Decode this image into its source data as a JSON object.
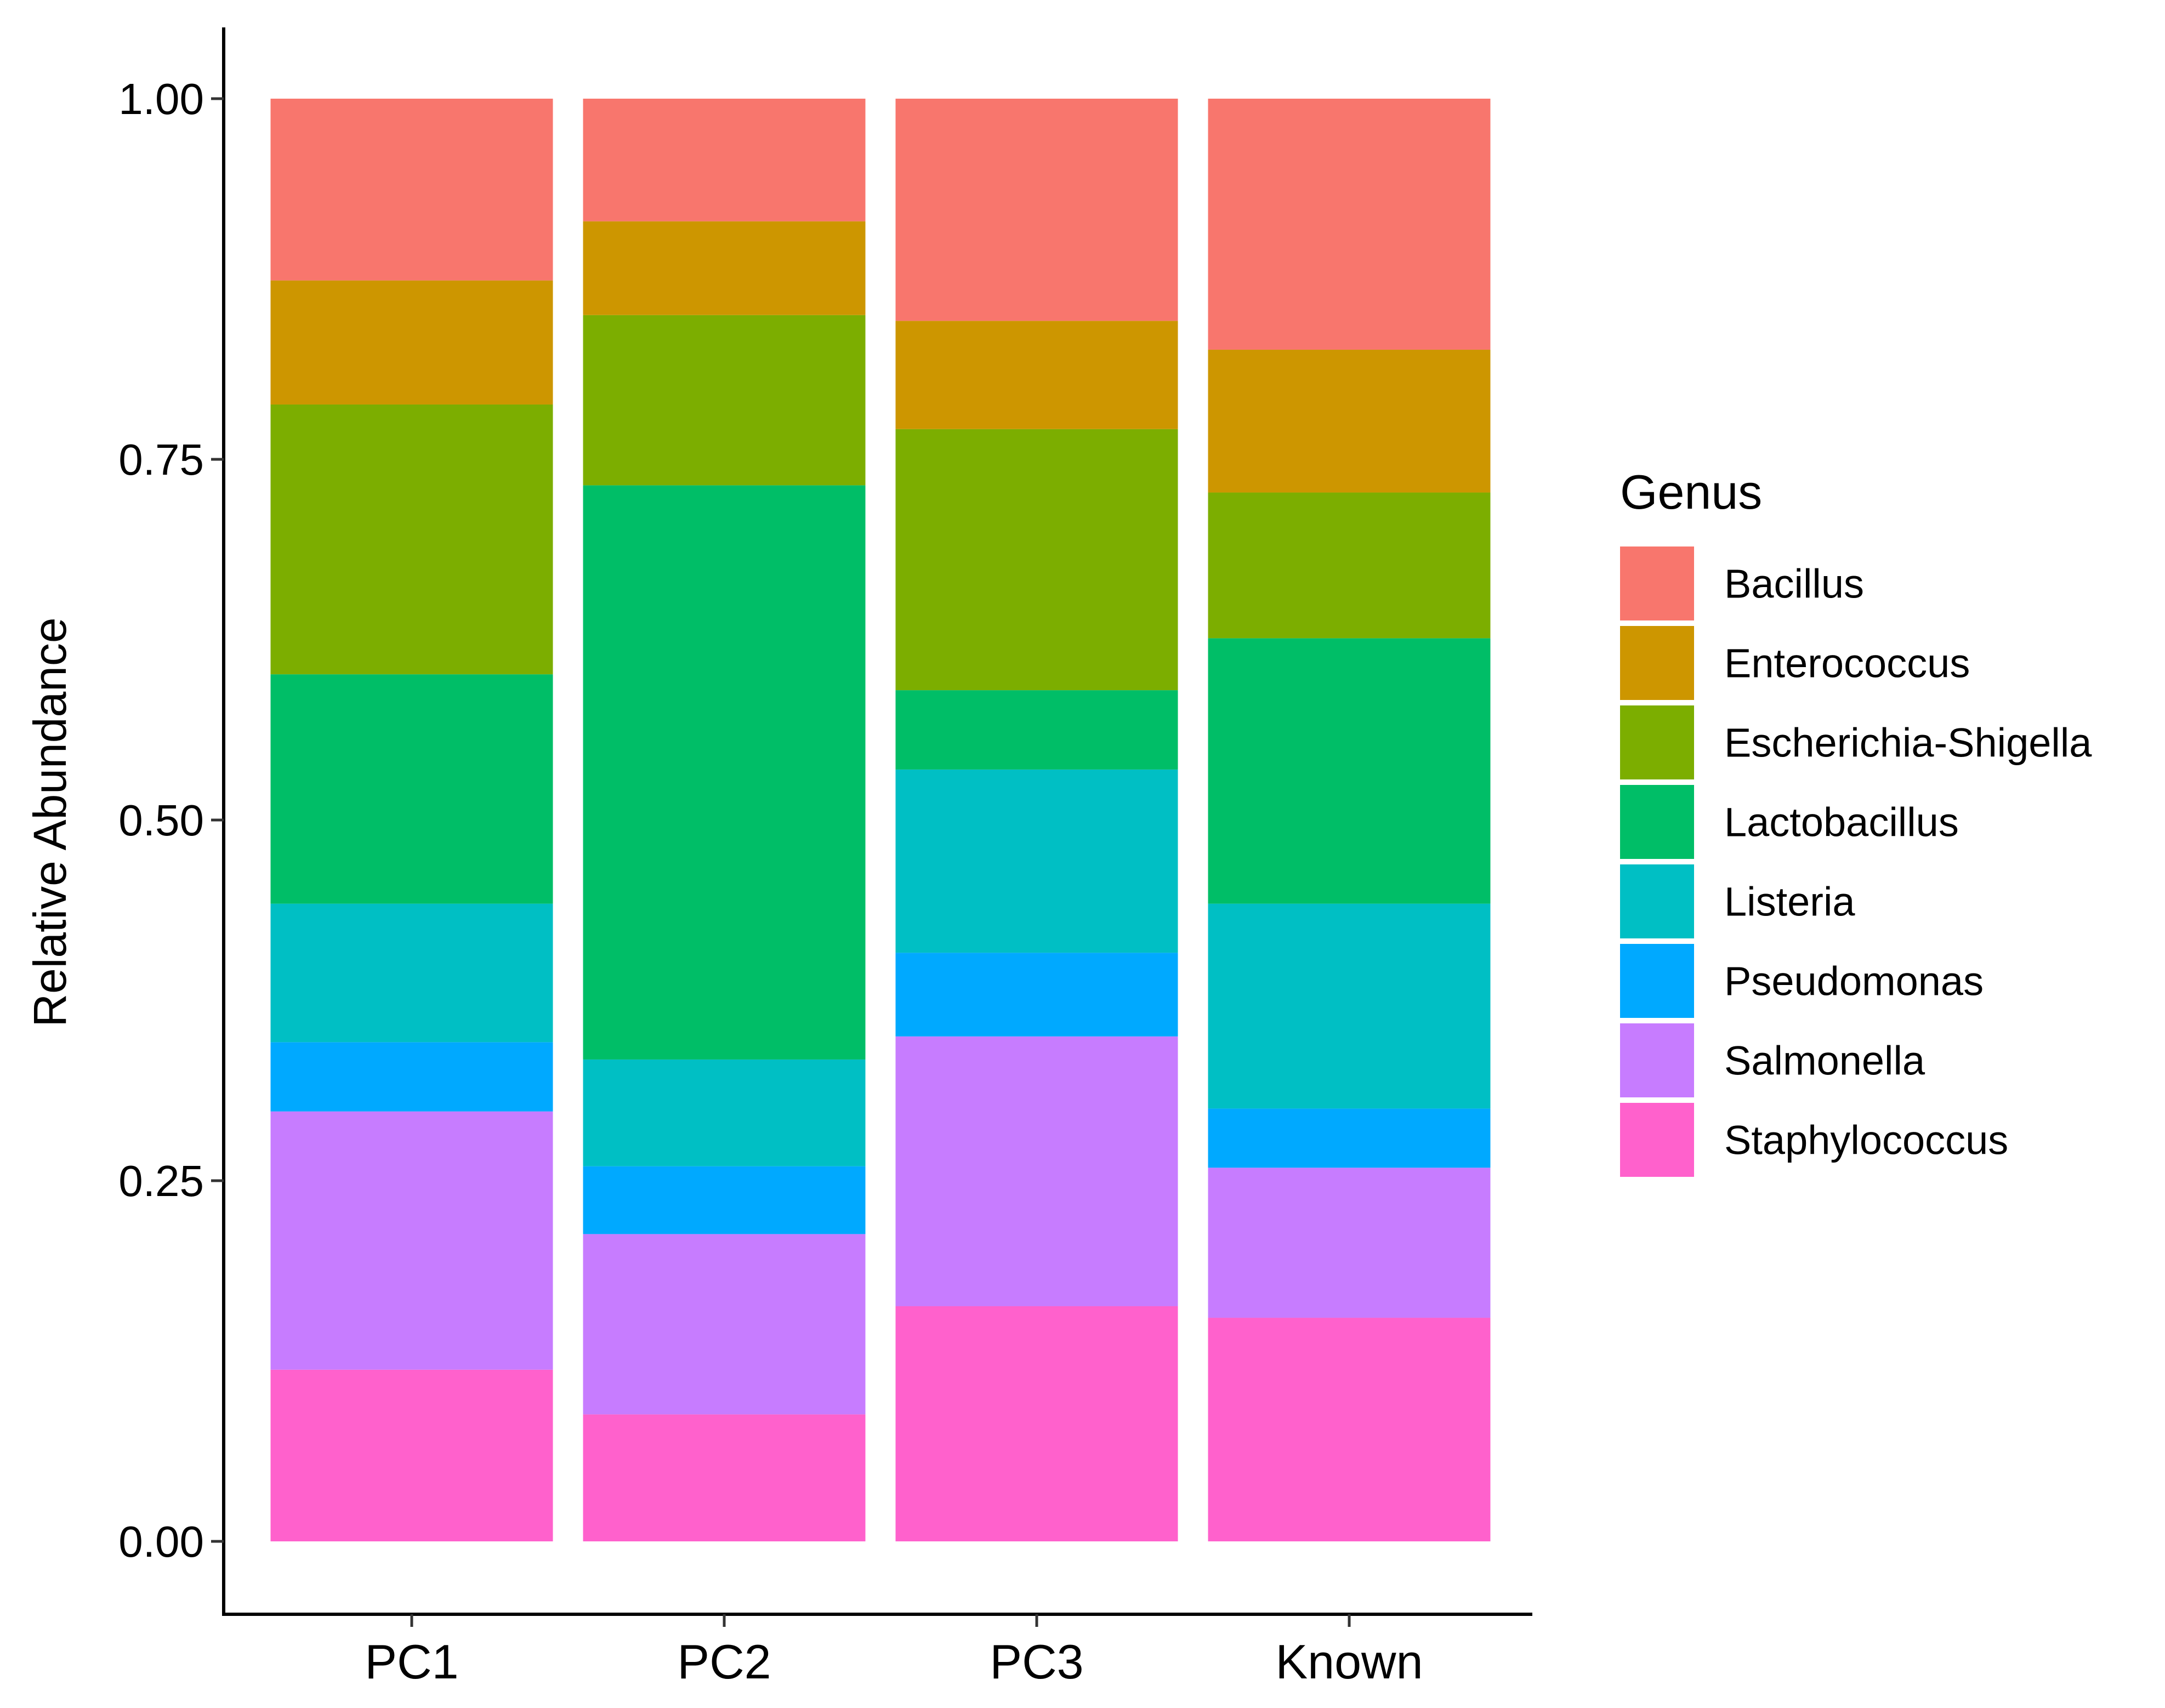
{
  "chart_data": {
    "type": "bar",
    "stacked": true,
    "title": "",
    "xlabel": "",
    "ylabel": "Relative Abundance",
    "ylim": [
      0,
      1
    ],
    "yticks": [
      "0.00",
      "0.25",
      "0.50",
      "0.75",
      "1.00"
    ],
    "ytick_values": [
      0,
      0.25,
      0.5,
      0.75,
      1.0
    ],
    "categories": [
      "PC1",
      "PC2",
      "PC3",
      "Known"
    ],
    "legend": {
      "title": "Genus",
      "placement": "right"
    },
    "series": [
      {
        "name": "Bacillus",
        "color": "#F8766D",
        "values": [
          0.126,
          0.085,
          0.154,
          0.174
        ]
      },
      {
        "name": "Enterococcus",
        "color": "#CD9600",
        "values": [
          0.086,
          0.065,
          0.075,
          0.099
        ]
      },
      {
        "name": "Escherichia-Shigella",
        "color": "#7CAE00",
        "values": [
          0.187,
          0.118,
          0.181,
          0.101
        ]
      },
      {
        "name": "Lactobacillus",
        "color": "#00BE67",
        "values": [
          0.159,
          0.398,
          0.055,
          0.184
        ]
      },
      {
        "name": "Listeria",
        "color": "#00BFC4",
        "values": [
          0.096,
          0.074,
          0.127,
          0.142
        ]
      },
      {
        "name": "Pseudomonas",
        "color": "#00A9FF",
        "values": [
          0.048,
          0.047,
          0.058,
          0.041
        ]
      },
      {
        "name": "Salmonella",
        "color": "#C77CFF",
        "values": [
          0.179,
          0.125,
          0.187,
          0.104
        ]
      },
      {
        "name": "Staphylococcus",
        "color": "#FF61CC",
        "values": [
          0.119,
          0.088,
          0.163,
          0.155
        ]
      }
    ]
  }
}
